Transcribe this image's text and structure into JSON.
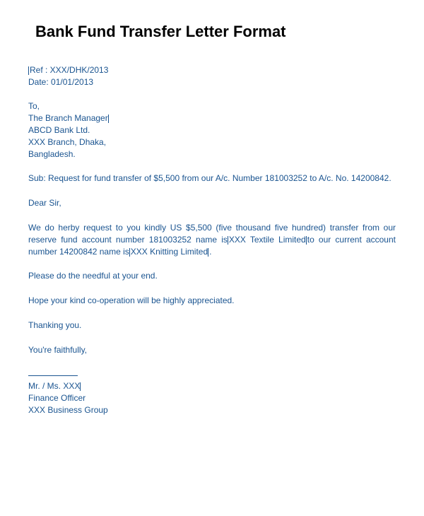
{
  "title": "Bank Fund Transfer Letter Format",
  "ref": "Ref : XXX/DHK/2013",
  "date": "Date: 01/01/2013",
  "addressee": {
    "to": "To,",
    "line1": "The Branch Manager",
    "line2": "ABCD Bank Ltd.",
    "line3": "XXX Branch, Dhaka,",
    "line4": "Bangladesh."
  },
  "subject": "Sub: Request for fund transfer of $5,500 from our A/c. Number 181003252 to A/c. No. 14200842.",
  "salutation": "Dear Sir,",
  "body": {
    "para1_a": "We do herby request to you kindly US $5,500 (five thousand five hundred) transfer from our reserve fund account number 181003252 name is",
    "para1_b": "XXX Textile Limited",
    "para1_c": "to our current account number 14200842 name is",
    "para1_d": "XXX Knitting Limited",
    "para1_e": ".",
    "para2": "Please do the needful at your end.",
    "para3": "Hope your kind co-operation will be highly appreciated.",
    "thanking": "Thanking you.",
    "closing": "You're faithfully,"
  },
  "signature": {
    "name": "Mr. / Ms. XXX",
    "title": "Finance Officer",
    "org": "XXX Business Group"
  },
  "colors": {
    "text_primary": "#1a5490",
    "title_color": "#000000",
    "background": "#ffffff"
  },
  "typography": {
    "body_fontsize": 12,
    "title_fontsize": 22,
    "font_family": "Arial"
  }
}
